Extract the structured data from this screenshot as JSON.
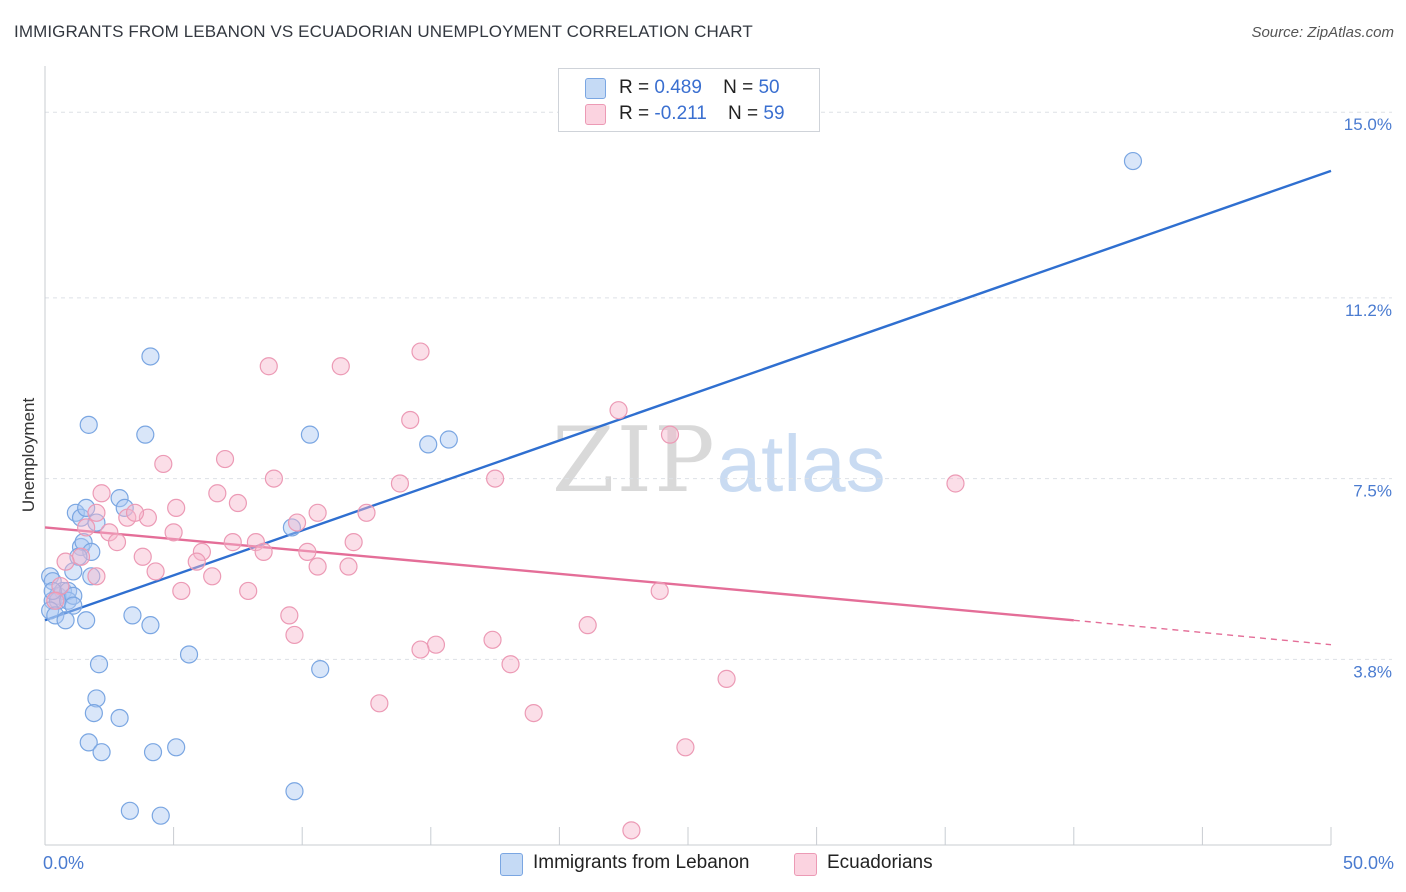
{
  "title": "IMMIGRANTS FROM LEBANON VS ECUADORIAN UNEMPLOYMENT CORRELATION CHART",
  "source": "Source: ZipAtlas.com",
  "watermark": {
    "zip": "ZIP",
    "atlas": "atlas"
  },
  "legend": {
    "rows": [
      {
        "r_label": "R =",
        "r_value": "0.489",
        "n_label": "N =",
        "n_value": "50",
        "color": "#aac8f2"
      },
      {
        "r_label": "R =",
        "r_value": "-0.211",
        "n_label": "N =",
        "n_value": "59",
        "color": "#f7b6cb"
      }
    ]
  },
  "bottom_legend": {
    "series1": "Immigrants from Lebanon",
    "series2": "Ecuadorians"
  },
  "colors": {
    "blue_fill": "#aac8f2",
    "blue_stroke": "#7aa6e2",
    "blue_line": "#2f6fd0",
    "pink_fill": "#f7b6cb",
    "pink_stroke": "#ec9ab5",
    "pink_line": "#e46e98",
    "axis_label": "#4a7bd0"
  },
  "chart_data": {
    "type": "scatter",
    "title": "IMMIGRANTS FROM LEBANON VS ECUADORIAN UNEMPLOYMENT CORRELATION CHART",
    "xlabel": "",
    "ylabel": "Unemployment",
    "xlim": [
      0,
      50
    ],
    "ylim": [
      0,
      15.7
    ],
    "x_tick_labels": [
      "0.0%",
      "50.0%"
    ],
    "y_ticks": [
      3.8,
      7.5,
      11.2,
      15.0
    ],
    "y_tick_labels": [
      "3.8%",
      "7.5%",
      "11.2%",
      "15.0%"
    ],
    "grid": true,
    "series": [
      {
        "name": "Immigrants from Lebanon",
        "points": [
          [
            42.3,
            14.0
          ],
          [
            4.1,
            10.0
          ],
          [
            1.7,
            8.6
          ],
          [
            3.9,
            8.4
          ],
          [
            10.3,
            8.4
          ],
          [
            14.9,
            8.2
          ],
          [
            15.7,
            8.3
          ],
          [
            2.9,
            7.1
          ],
          [
            1.2,
            6.8
          ],
          [
            1.4,
            6.7
          ],
          [
            1.6,
            6.9
          ],
          [
            2.0,
            6.6
          ],
          [
            3.1,
            6.9
          ],
          [
            9.6,
            6.5
          ],
          [
            1.4,
            6.1
          ],
          [
            1.5,
            6.2
          ],
          [
            1.8,
            6.0
          ],
          [
            1.3,
            5.9
          ],
          [
            1.1,
            5.6
          ],
          [
            1.8,
            5.5
          ],
          [
            0.2,
            5.5
          ],
          [
            0.3,
            5.4
          ],
          [
            0.5,
            5.1
          ],
          [
            0.7,
            5.2
          ],
          [
            0.9,
            5.2
          ],
          [
            0.3,
            5.0
          ],
          [
            0.5,
            5.0
          ],
          [
            0.9,
            5.0
          ],
          [
            1.1,
            5.1
          ],
          [
            0.2,
            4.8
          ],
          [
            0.4,
            4.7
          ],
          [
            1.1,
            4.9
          ],
          [
            1.6,
            4.6
          ],
          [
            0.8,
            4.6
          ],
          [
            3.4,
            4.7
          ],
          [
            4.1,
            4.5
          ],
          [
            5.6,
            3.9
          ],
          [
            2.1,
            3.7
          ],
          [
            10.7,
            3.6
          ],
          [
            2.0,
            3.0
          ],
          [
            1.9,
            2.7
          ],
          [
            2.9,
            2.6
          ],
          [
            1.7,
            2.1
          ],
          [
            2.2,
            1.9
          ],
          [
            4.2,
            1.9
          ],
          [
            5.1,
            2.0
          ],
          [
            9.7,
            1.1
          ],
          [
            3.3,
            0.7
          ],
          [
            4.5,
            0.6
          ],
          [
            0.3,
            5.2
          ]
        ]
      },
      {
        "name": "Ecuadorians",
        "points": [
          [
            14.6,
            10.1
          ],
          [
            8.7,
            9.8
          ],
          [
            11.5,
            9.8
          ],
          [
            22.3,
            8.9
          ],
          [
            14.2,
            8.7
          ],
          [
            24.3,
            8.4
          ],
          [
            7.0,
            7.9
          ],
          [
            4.6,
            7.8
          ],
          [
            8.9,
            7.5
          ],
          [
            13.8,
            7.4
          ],
          [
            17.5,
            7.5
          ],
          [
            35.4,
            7.4
          ],
          [
            2.2,
            7.2
          ],
          [
            6.7,
            7.2
          ],
          [
            5.1,
            6.9
          ],
          [
            7.5,
            7.0
          ],
          [
            10.6,
            6.8
          ],
          [
            12.5,
            6.8
          ],
          [
            2.0,
            6.8
          ],
          [
            3.2,
            6.7
          ],
          [
            4.0,
            6.7
          ],
          [
            3.5,
            6.8
          ],
          [
            1.6,
            6.5
          ],
          [
            2.5,
            6.4
          ],
          [
            5.0,
            6.4
          ],
          [
            9.8,
            6.6
          ],
          [
            2.8,
            6.2
          ],
          [
            7.3,
            6.2
          ],
          [
            8.2,
            6.2
          ],
          [
            12.0,
            6.2
          ],
          [
            6.1,
            6.0
          ],
          [
            8.5,
            6.0
          ],
          [
            10.2,
            6.0
          ],
          [
            3.8,
            5.9
          ],
          [
            1.4,
            5.9
          ],
          [
            0.8,
            5.8
          ],
          [
            5.9,
            5.8
          ],
          [
            10.6,
            5.7
          ],
          [
            11.8,
            5.7
          ],
          [
            4.3,
            5.6
          ],
          [
            6.5,
            5.5
          ],
          [
            2.0,
            5.5
          ],
          [
            5.3,
            5.2
          ],
          [
            7.9,
            5.2
          ],
          [
            23.9,
            5.2
          ],
          [
            9.5,
            4.7
          ],
          [
            21.1,
            4.5
          ],
          [
            9.7,
            4.3
          ],
          [
            17.4,
            4.2
          ],
          [
            15.2,
            4.1
          ],
          [
            14.6,
            4.0
          ],
          [
            18.1,
            3.7
          ],
          [
            26.5,
            3.4
          ],
          [
            13.0,
            2.9
          ],
          [
            19.0,
            2.7
          ],
          [
            24.9,
            2.0
          ],
          [
            22.8,
            0.3
          ],
          [
            0.6,
            5.3
          ],
          [
            0.4,
            5.0
          ]
        ]
      }
    ],
    "trend_lines": [
      {
        "series": "Immigrants from Lebanon",
        "x": [
          0,
          50
        ],
        "y": [
          4.6,
          13.8
        ]
      },
      {
        "series": "Ecuadorians",
        "x": [
          0,
          40
        ],
        "y": [
          6.5,
          4.6
        ],
        "dashed_to": [
          50,
          4.1
        ]
      }
    ]
  }
}
